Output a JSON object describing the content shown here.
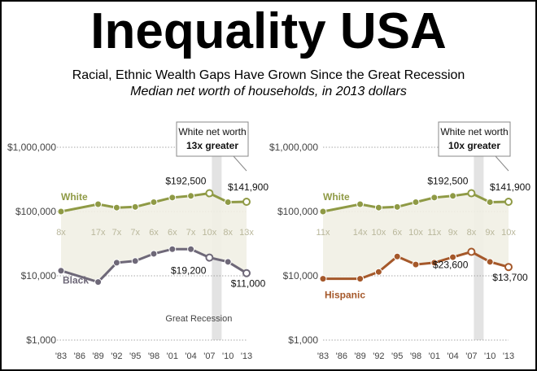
{
  "header": {
    "title": "Inequality USA",
    "subtitle": "Racial, Ethnic Wealth Gaps Have Grown Since the Great Recession",
    "caption": "Median net worth of households, in 2013 dollars"
  },
  "chart_data": [
    {
      "type": "line",
      "scale": "log",
      "ylim": [
        1000,
        1000000
      ],
      "y_ticks": [
        {
          "value": 1000000,
          "label": "$1,000,000"
        },
        {
          "value": 100000,
          "label": "$100,000"
        },
        {
          "value": 10000,
          "label": "$10,000"
        },
        {
          "value": 1000,
          "label": "$1,000"
        }
      ],
      "x": [
        1983,
        1989,
        1992,
        1995,
        1998,
        2001,
        2004,
        2007,
        2010,
        2013
      ],
      "x_tick_labels": [
        "'83",
        "'86",
        "'89",
        "'92",
        "'95",
        "'98",
        "'01",
        "'04",
        "'07",
        "'10",
        "'13"
      ],
      "x_tick_years": [
        1983,
        1986,
        1989,
        1992,
        1995,
        1998,
        2001,
        2004,
        2007,
        2010,
        2013
      ],
      "series": [
        {
          "name": "White",
          "color": "#8f9a45",
          "values": [
            100000,
            130000,
            115000,
            118000,
            140000,
            165000,
            175000,
            192500,
            140000,
            141900
          ]
        },
        {
          "name": "Black",
          "color": "#6e6878",
          "values": [
            12000,
            8000,
            16000,
            17000,
            22000,
            26000,
            26000,
            19200,
            16500,
            11000
          ]
        }
      ],
      "ratio_labels": [
        "8x",
        "17x",
        "7x",
        "7x",
        "6x",
        "6x",
        "7x",
        "10x",
        "8x",
        "13x"
      ],
      "point_labels": [
        {
          "series": "White",
          "x": 2007,
          "text": "$192,500"
        },
        {
          "series": "White",
          "x": 2013,
          "text": "$141,900"
        },
        {
          "series": "Black",
          "x": 2007,
          "text": "$19,200"
        },
        {
          "series": "Black",
          "x": 2013,
          "text": "$11,000"
        }
      ],
      "callout": {
        "line1": "White net worth",
        "line2": "13x greater"
      },
      "recession_label": "Great Recession",
      "recession_range": [
        2007,
        2010
      ]
    },
    {
      "type": "line",
      "scale": "log",
      "ylim": [
        1000,
        1000000
      ],
      "y_ticks": [
        {
          "value": 1000000,
          "label": "$1,000,000"
        },
        {
          "value": 100000,
          "label": "$100,000"
        },
        {
          "value": 10000,
          "label": "$10,000"
        },
        {
          "value": 1000,
          "label": "$1,000"
        }
      ],
      "x": [
        1983,
        1989,
        1992,
        1995,
        1998,
        2001,
        2004,
        2007,
        2010,
        2013
      ],
      "x_tick_labels": [
        "'83",
        "'86",
        "'89",
        "'92",
        "'95",
        "'98",
        "'01",
        "'04",
        "'07",
        "'10",
        "'13"
      ],
      "x_tick_years": [
        1983,
        1986,
        1989,
        1992,
        1995,
        1998,
        2001,
        2004,
        2007,
        2010,
        2013
      ],
      "series": [
        {
          "name": "White",
          "color": "#8f9a45",
          "values": [
            100000,
            130000,
            115000,
            118000,
            140000,
            165000,
            175000,
            192500,
            140000,
            141900
          ]
        },
        {
          "name": "Hispanic",
          "color": "#a5582a",
          "values": [
            9000,
            9000,
            11500,
            20000,
            15000,
            16000,
            19500,
            23600,
            16500,
            13700
          ]
        }
      ],
      "ratio_labels": [
        "11x",
        "14x",
        "10x",
        "6x",
        "10x",
        "11x",
        "9x",
        "8x",
        "9x",
        "10x"
      ],
      "point_labels": [
        {
          "series": "White",
          "x": 2007,
          "text": "$192,500"
        },
        {
          "series": "White",
          "x": 2013,
          "text": "$141,900"
        },
        {
          "series": "Hispanic",
          "x": 2007,
          "text": "$23,600"
        },
        {
          "series": "Hispanic",
          "x": 2013,
          "text": "$13,700"
        }
      ],
      "callout": {
        "line1": "White net worth",
        "line2": "10x greater"
      },
      "recession_range": [
        2007,
        2010
      ]
    }
  ]
}
